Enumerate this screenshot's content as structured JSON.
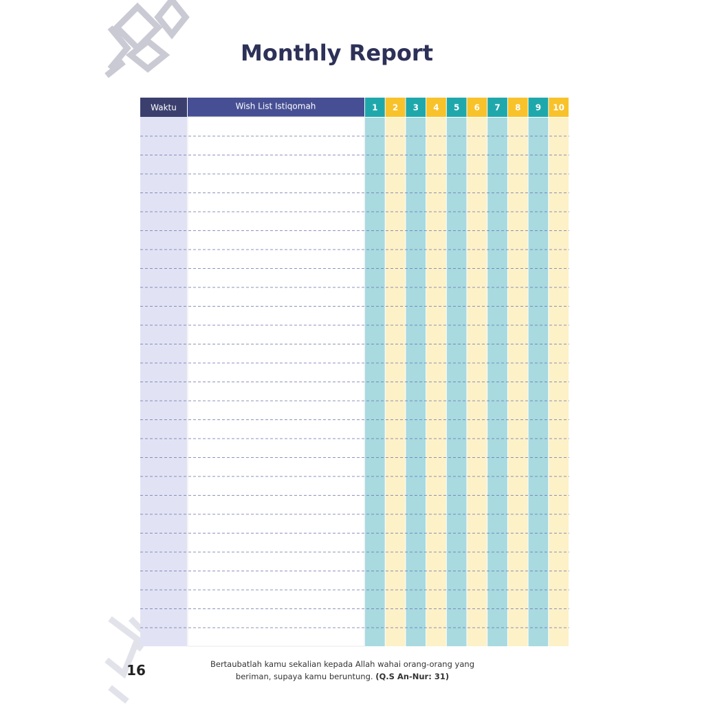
{
  "header": {
    "title": "Monthly Report"
  },
  "table": {
    "columns": [
      "Waktu",
      "Wish List Istiqomah"
    ],
    "days": [
      1,
      2,
      3,
      4,
      5,
      6,
      7,
      8,
      9,
      10
    ]
  },
  "footer": {
    "page_number": "16",
    "quote_line1": "Bertaubatlah kamu sekalian kepada Allah wahai orang-orang yang",
    "quote_line2": "beriman, supaya kamu beruntung.",
    "quote_source": "(Q.S An-Nur: 31)"
  }
}
